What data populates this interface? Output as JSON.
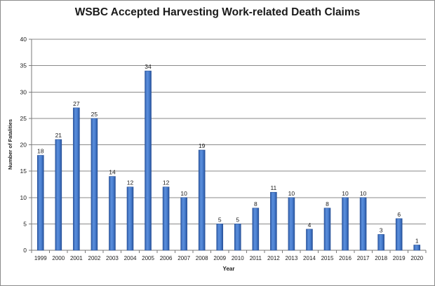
{
  "chart_data": {
    "type": "bar",
    "title": "WSBC Accepted Harvesting Work-related Death Claims",
    "xlabel": "Year",
    "ylabel": "Number of Fatalities",
    "categories": [
      "1999",
      "2000",
      "2001",
      "2002",
      "2003",
      "2004",
      "2005",
      "2006",
      "2007",
      "2008",
      "2009",
      "2010",
      "2011",
      "2012",
      "2013",
      "2014",
      "2015",
      "2016",
      "2017",
      "2018",
      "2019",
      "2020"
    ],
    "values": [
      18,
      21,
      27,
      25,
      14,
      12,
      34,
      12,
      10,
      19,
      5,
      5,
      8,
      11,
      10,
      4,
      8,
      10,
      10,
      3,
      6,
      1
    ],
    "ylim": [
      0,
      40
    ],
    "yticks": [
      0,
      5,
      10,
      15,
      20,
      25,
      30,
      35,
      40
    ],
    "grid": true,
    "legend": "none",
    "data_labels": true,
    "colors": {
      "bar": "#3a6fc4",
      "bar_edge": "#2a5298",
      "grid": "#8a8a8a"
    }
  }
}
